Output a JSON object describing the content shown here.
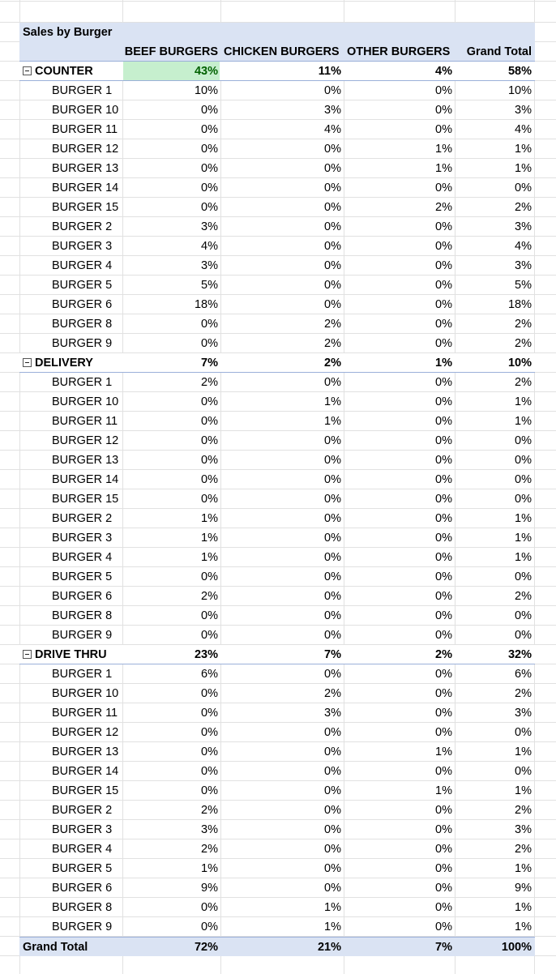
{
  "pivot": {
    "title": "Sales by Burger",
    "columns": {
      "beef": "BEEF BURGERS",
      "chicken": "CHICKEN BURGERS",
      "other": "OTHER BURGERS",
      "total": "Grand Total"
    },
    "groups": [
      {
        "label": "COUNTER",
        "totals": [
          "43%",
          "11%",
          "4%",
          "58%"
        ],
        "items": [
          {
            "label": "BURGER 1",
            "v": [
              "10%",
              "0%",
              "0%",
              "10%"
            ]
          },
          {
            "label": "BURGER 10",
            "v": [
              "0%",
              "3%",
              "0%",
              "3%"
            ]
          },
          {
            "label": "BURGER 11",
            "v": [
              "0%",
              "4%",
              "0%",
              "4%"
            ]
          },
          {
            "label": "BURGER 12",
            "v": [
              "0%",
              "0%",
              "1%",
              "1%"
            ]
          },
          {
            "label": "BURGER 13",
            "v": [
              "0%",
              "0%",
              "1%",
              "1%"
            ]
          },
          {
            "label": "BURGER 14",
            "v": [
              "0%",
              "0%",
              "0%",
              "0%"
            ]
          },
          {
            "label": "BURGER 15",
            "v": [
              "0%",
              "0%",
              "2%",
              "2%"
            ]
          },
          {
            "label": "BURGER 2",
            "v": [
              "3%",
              "0%",
              "0%",
              "3%"
            ]
          },
          {
            "label": "BURGER 3",
            "v": [
              "4%",
              "0%",
              "0%",
              "4%"
            ]
          },
          {
            "label": "BURGER 4",
            "v": [
              "3%",
              "0%",
              "0%",
              "3%"
            ]
          },
          {
            "label": "BURGER 5",
            "v": [
              "5%",
              "0%",
              "0%",
              "5%"
            ]
          },
          {
            "label": "BURGER 6",
            "v": [
              "18%",
              "0%",
              "0%",
              "18%"
            ]
          },
          {
            "label": "BURGER 8",
            "v": [
              "0%",
              "2%",
              "0%",
              "2%"
            ]
          },
          {
            "label": "BURGER 9",
            "v": [
              "0%",
              "2%",
              "0%",
              "2%"
            ]
          }
        ]
      },
      {
        "label": "DELIVERY",
        "totals": [
          "7%",
          "2%",
          "1%",
          "10%"
        ],
        "items": [
          {
            "label": "BURGER 1",
            "v": [
              "2%",
              "0%",
              "0%",
              "2%"
            ]
          },
          {
            "label": "BURGER 10",
            "v": [
              "0%",
              "1%",
              "0%",
              "1%"
            ]
          },
          {
            "label": "BURGER 11",
            "v": [
              "0%",
              "1%",
              "0%",
              "1%"
            ]
          },
          {
            "label": "BURGER 12",
            "v": [
              "0%",
              "0%",
              "0%",
              "0%"
            ]
          },
          {
            "label": "BURGER 13",
            "v": [
              "0%",
              "0%",
              "0%",
              "0%"
            ]
          },
          {
            "label": "BURGER 14",
            "v": [
              "0%",
              "0%",
              "0%",
              "0%"
            ]
          },
          {
            "label": "BURGER 15",
            "v": [
              "0%",
              "0%",
              "0%",
              "0%"
            ]
          },
          {
            "label": "BURGER 2",
            "v": [
              "1%",
              "0%",
              "0%",
              "1%"
            ]
          },
          {
            "label": "BURGER 3",
            "v": [
              "1%",
              "0%",
              "0%",
              "1%"
            ]
          },
          {
            "label": "BURGER 4",
            "v": [
              "1%",
              "0%",
              "0%",
              "1%"
            ]
          },
          {
            "label": "BURGER 5",
            "v": [
              "0%",
              "0%",
              "0%",
              "0%"
            ]
          },
          {
            "label": "BURGER 6",
            "v": [
              "2%",
              "0%",
              "0%",
              "2%"
            ]
          },
          {
            "label": "BURGER 8",
            "v": [
              "0%",
              "0%",
              "0%",
              "0%"
            ]
          },
          {
            "label": "BURGER 9",
            "v": [
              "0%",
              "0%",
              "0%",
              "0%"
            ]
          }
        ]
      },
      {
        "label": "DRIVE THRU",
        "totals": [
          "23%",
          "7%",
          "2%",
          "32%"
        ],
        "items": [
          {
            "label": "BURGER 1",
            "v": [
              "6%",
              "0%",
              "0%",
              "6%"
            ]
          },
          {
            "label": "BURGER 10",
            "v": [
              "0%",
              "2%",
              "0%",
              "2%"
            ]
          },
          {
            "label": "BURGER 11",
            "v": [
              "0%",
              "3%",
              "0%",
              "3%"
            ]
          },
          {
            "label": "BURGER 12",
            "v": [
              "0%",
              "0%",
              "0%",
              "0%"
            ]
          },
          {
            "label": "BURGER 13",
            "v": [
              "0%",
              "0%",
              "1%",
              "1%"
            ]
          },
          {
            "label": "BURGER 14",
            "v": [
              "0%",
              "0%",
              "0%",
              "0%"
            ]
          },
          {
            "label": "BURGER 15",
            "v": [
              "0%",
              "0%",
              "1%",
              "1%"
            ]
          },
          {
            "label": "BURGER 2",
            "v": [
              "2%",
              "0%",
              "0%",
              "2%"
            ]
          },
          {
            "label": "BURGER 3",
            "v": [
              "3%",
              "0%",
              "0%",
              "3%"
            ]
          },
          {
            "label": "BURGER 4",
            "v": [
              "2%",
              "0%",
              "0%",
              "2%"
            ]
          },
          {
            "label": "BURGER 5",
            "v": [
              "1%",
              "0%",
              "0%",
              "1%"
            ]
          },
          {
            "label": "BURGER 6",
            "v": [
              "9%",
              "0%",
              "0%",
              "9%"
            ]
          },
          {
            "label": "BURGER 8",
            "v": [
              "0%",
              "1%",
              "0%",
              "1%"
            ]
          },
          {
            "label": "BURGER 9",
            "v": [
              "0%",
              "1%",
              "0%",
              "1%"
            ]
          }
        ]
      }
    ],
    "grand_total": {
      "label": "Grand Total",
      "v": [
        "72%",
        "21%",
        "7%",
        "100%"
      ]
    }
  },
  "colors": {
    "header_fill": "#dae3f3",
    "highlight_fill": "#c6efce",
    "highlight_text": "#006100",
    "gridline": "#e1e1e1"
  }
}
